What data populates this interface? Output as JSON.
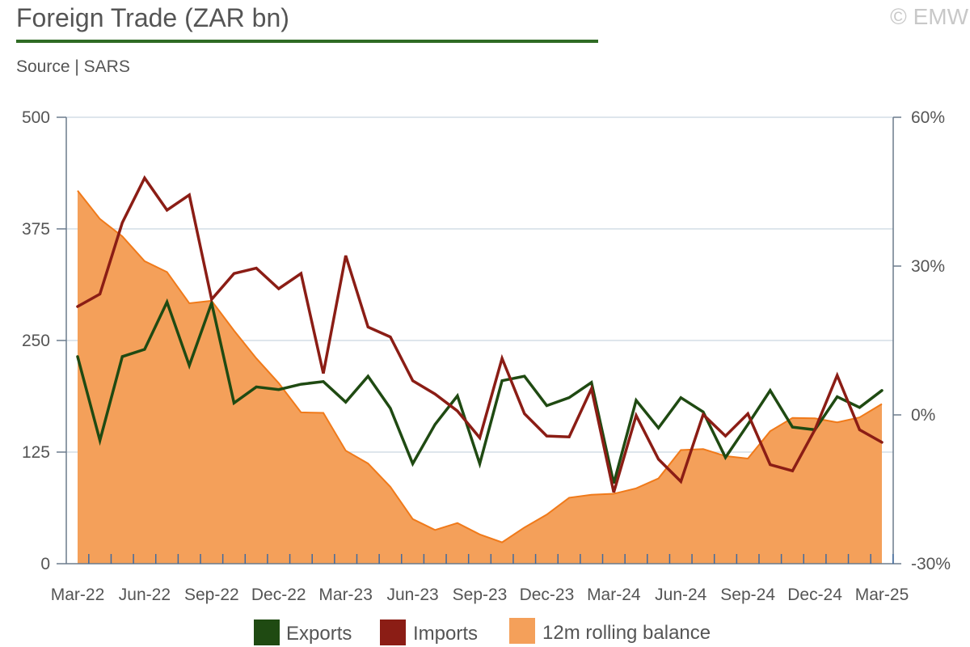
{
  "header": {
    "title": "Foreign Trade (ZAR bn)",
    "subtitle": "Source | SARS",
    "copyright": "© EMW"
  },
  "colors": {
    "exports": "#1f4a12",
    "imports": "#8b1d15",
    "balance_fill": "#f4a05a",
    "balance_line": "#f07a1a",
    "title_rule": "#2f6b24",
    "axis": "#6b7b8c",
    "grid": "#d4dde6"
  },
  "chart_data": {
    "type": "line",
    "x": [
      "Mar-22",
      "Apr-22",
      "May-22",
      "Jun-22",
      "Jul-22",
      "Aug-22",
      "Sep-22",
      "Oct-22",
      "Nov-22",
      "Dec-22",
      "Jan-23",
      "Feb-23",
      "Mar-23",
      "Apr-23",
      "May-23",
      "Jun-23",
      "Jul-23",
      "Aug-23",
      "Sep-23",
      "Oct-23",
      "Nov-23",
      "Dec-23",
      "Jan-24",
      "Feb-24",
      "Mar-24",
      "Apr-24",
      "May-24",
      "Jun-24",
      "Jul-24",
      "Aug-24",
      "Sep-24",
      "Oct-24",
      "Nov-24",
      "Dec-24",
      "Jan-25",
      "Feb-25",
      "Mar-25"
    ],
    "x_tick_labels": [
      "Mar-22",
      "Jun-22",
      "Sep-22",
      "Dec-22",
      "Mar-23",
      "Jun-23",
      "Sep-23",
      "Dec-23",
      "Mar-24",
      "Jun-24",
      "Sep-24",
      "Dec-24",
      "Mar-25"
    ],
    "series": [
      {
        "name": "Exports",
        "axis": "left",
        "style": "line",
        "values": [
          232,
          138,
          232,
          240,
          293,
          222,
          292,
          180,
          198,
          195,
          201,
          204,
          181,
          210,
          174,
          112,
          156,
          188,
          112,
          205,
          210,
          177,
          186,
          203,
          90,
          183,
          152,
          186,
          170,
          119,
          156,
          194,
          153,
          150,
          187,
          175,
          194
        ]
      },
      {
        "name": "Imports",
        "axis": "left",
        "style": "line",
        "values": [
          288,
          302,
          382,
          432,
          396,
          413,
          296,
          325,
          331,
          308,
          325,
          213,
          345,
          265,
          254,
          205,
          190,
          171,
          141,
          230,
          168,
          143,
          142,
          196,
          80,
          166,
          117,
          92,
          167,
          143,
          168,
          111,
          104,
          150,
          211,
          150,
          136
        ]
      },
      {
        "name": "12m rolling balance",
        "axis": "right",
        "style": "area",
        "unit": "%",
        "values": [
          45.2,
          39.5,
          36.0,
          31.0,
          28.8,
          22.5,
          23.0,
          17.0,
          11.4,
          6.4,
          0.5,
          0.4,
          -7.2,
          -9.8,
          -14.5,
          -21.0,
          -23.2,
          -21.8,
          -24.1,
          -25.7,
          -22.7,
          -20.1,
          -16.7,
          -16.1,
          -15.9,
          -14.8,
          -12.8,
          -7.1,
          -6.9,
          -8.3,
          -8.8,
          -3.3,
          -0.6,
          -0.7,
          -1.5,
          -0.5,
          2.2
        ]
      }
    ],
    "y_left": {
      "min": 0,
      "max": 500,
      "ticks": [
        0,
        125,
        250,
        375,
        500
      ],
      "tick_labels": [
        "0",
        "125",
        "250",
        "375",
        "500"
      ]
    },
    "y_right": {
      "min": -30,
      "max": 60,
      "ticks": [
        -30,
        0,
        30,
        60
      ],
      "tick_labels": [
        "-30%",
        "0%",
        "30%",
        "60%"
      ]
    },
    "grid": true,
    "legend_position": "bottom"
  }
}
